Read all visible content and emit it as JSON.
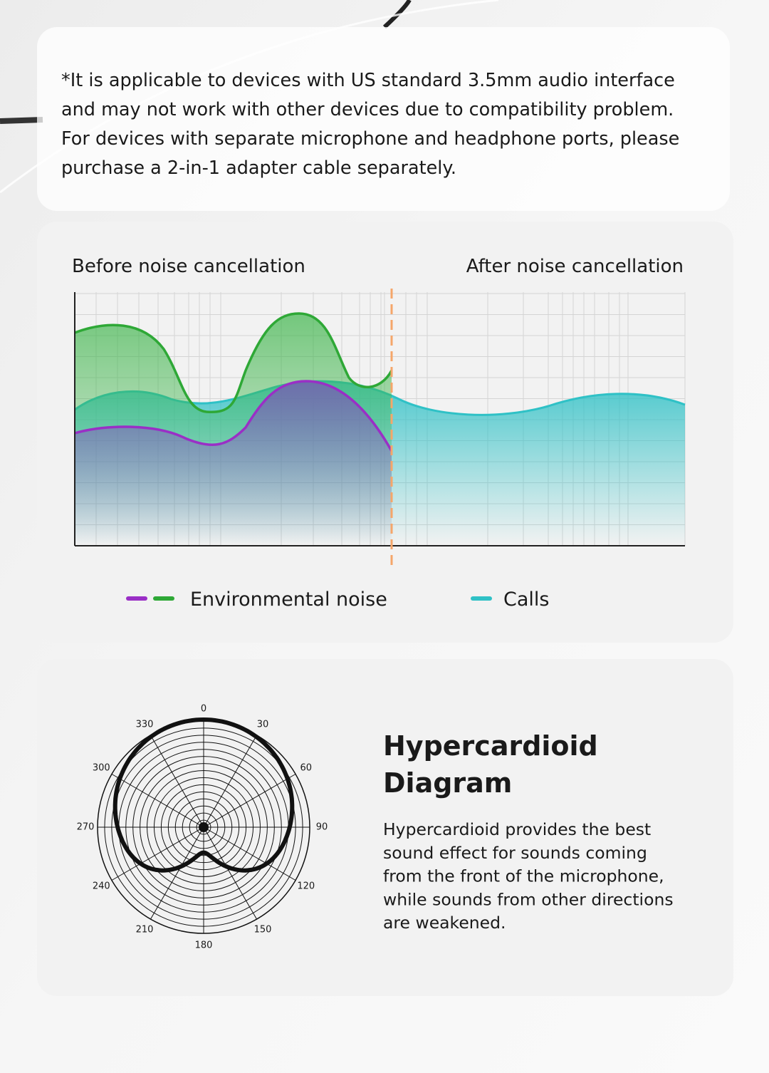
{
  "note": [
    "*It is applicable to devices with US standard 3.5mm audio interface",
    "and may not work with other devices due to compatibility problem.",
    "For devices with separate microphone and headphone ports, please",
    "purchase a 2-in-1 adapter cable separately."
  ],
  "noise_chart": {
    "left_heading": "Before noise cancellation",
    "right_heading": "After noise cancellation",
    "legend": [
      {
        "label": "Environmental noise"
      },
      {
        "label": "Calls"
      }
    ]
  },
  "polar": {
    "angles": [
      0,
      30,
      60,
      90,
      120,
      150,
      180,
      210,
      240,
      270,
      300,
      330
    ]
  },
  "hypercardioid": {
    "title": [
      "Hypercardioid",
      "Diagram"
    ],
    "description": [
      "Hypercardioid provides the best",
      "sound effect for sounds coming",
      "from the front of the microphone,",
      "while sounds from other directions",
      "are weakened."
    ]
  }
}
